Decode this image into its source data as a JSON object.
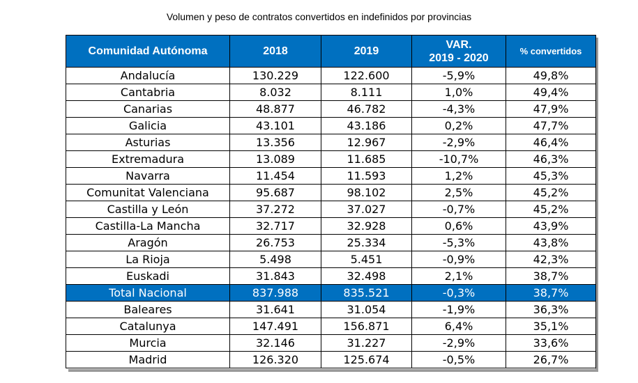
{
  "title": "Volumen y peso de contratos convertidos en indefinidos por provincias",
  "table": {
    "headers": {
      "region": "Comunidad Autónoma",
      "y2018": "2018",
      "y2019": "2019",
      "var_line1": "VAR.",
      "var_line2": "2019 - 2020",
      "pct": "% convertidos"
    },
    "rows": [
      {
        "region": "Andalucía",
        "v2018": "130.229",
        "v2019": "122.600",
        "var": "-5,9%",
        "pct": "49,8%"
      },
      {
        "region": "Cantabria",
        "v2018": "8.032",
        "v2019": "8.111",
        "var": "1,0%",
        "pct": "49,4%"
      },
      {
        "region": "Canarias",
        "v2018": "48.877",
        "v2019": "46.782",
        "var": "-4,3%",
        "pct": "47,9%"
      },
      {
        "region": "Galicia",
        "v2018": "43.101",
        "v2019": "43.186",
        "var": "0,2%",
        "pct": "47,7%"
      },
      {
        "region": "Asturias",
        "v2018": "13.356",
        "v2019": "12.967",
        "var": "-2,9%",
        "pct": "46,4%"
      },
      {
        "region": "Extremadura",
        "v2018": "13.089",
        "v2019": "11.685",
        "var": "-10,7%",
        "pct": "46,3%"
      },
      {
        "region": "Navarra",
        "v2018": "11.454",
        "v2019": "11.593",
        "var": "1,2%",
        "pct": "45,3%"
      },
      {
        "region": "Comunitat Valenciana",
        "v2018": "95.687",
        "v2019": "98.102",
        "var": "2,5%",
        "pct": "45,2%"
      },
      {
        "region": "Castilla y León",
        "v2018": "37.272",
        "v2019": "37.027",
        "var": "-0,7%",
        "pct": "45,2%"
      },
      {
        "region": "Castilla-La Mancha",
        "v2018": "32.717",
        "v2019": "32.928",
        "var": "0,6%",
        "pct": "43,9%"
      },
      {
        "region": "Aragón",
        "v2018": "26.753",
        "v2019": "25.334",
        "var": "-5,3%",
        "pct": "43,8%"
      },
      {
        "region": "La Rioja",
        "v2018": "5.498",
        "v2019": "5.451",
        "var": "-0,9%",
        "pct": "42,3%"
      },
      {
        "region": "Euskadi",
        "v2018": "31.843",
        "v2019": "32.498",
        "var": "2,1%",
        "pct": "38,7%"
      },
      {
        "region": "Total Nacional",
        "v2018": "837.988",
        "v2019": "835.521",
        "var": "-0,3%",
        "pct": "38,7%",
        "highlight": true
      },
      {
        "region": "Baleares",
        "v2018": "31.641",
        "v2019": "31.054",
        "var": "-1,9%",
        "pct": "36,3%"
      },
      {
        "region": "Catalunya",
        "v2018": "147.491",
        "v2019": "156.871",
        "var": "6,4%",
        "pct": "35,1%"
      },
      {
        "region": "Murcia",
        "v2018": "32.146",
        "v2019": "31.227",
        "var": "-2,9%",
        "pct": "33,6%"
      },
      {
        "region": "Madrid",
        "v2018": "126.320",
        "v2019": "125.674",
        "var": "-0,5%",
        "pct": "26,7%"
      }
    ]
  },
  "colors": {
    "header_bg": "#0070c0",
    "header_text": "#ffffff",
    "highlight_bg": "#0070c0"
  }
}
